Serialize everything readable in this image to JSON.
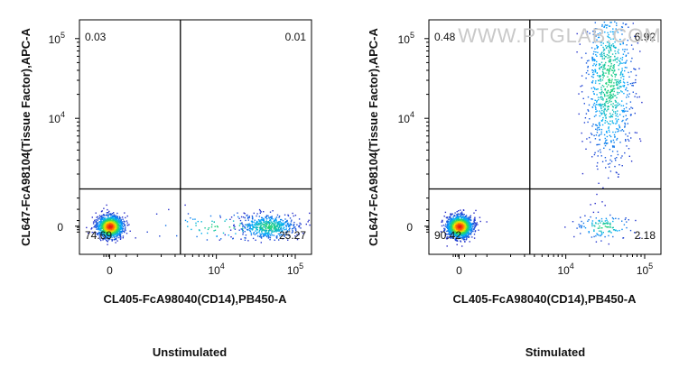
{
  "watermark": "WWW.PTGLAB.COM",
  "chart_data": [
    {
      "type": "scatter",
      "subtype": "flow-cytometry-density-plot",
      "caption": "Unstimulated",
      "xlabel": "CL405-FcA98040(CD14),PB450-A",
      "ylabel": "CL647-FcA98104(Tissue Factor),APC-A",
      "x_ticks": [
        {
          "base": "0",
          "exp": ""
        },
        {
          "base": "10",
          "exp": "4"
        },
        {
          "base": "10",
          "exp": "5"
        }
      ],
      "y_ticks": [
        {
          "base": "0",
          "exp": ""
        },
        {
          "base": "10",
          "exp": "4"
        },
        {
          "base": "10",
          "exp": "5"
        }
      ],
      "scale": "biexponential",
      "gate_x": 3500,
      "gate_y": 1300,
      "quadrants": {
        "top_left": "0.03",
        "top_right": "0.01",
        "bottom_left": "74.69",
        "bottom_right": "25.27"
      },
      "populations": [
        {
          "x": 0,
          "y": 0,
          "n": 1400,
          "spread": "tight"
        },
        {
          "x": 45000,
          "y": 0,
          "n": 520,
          "spread": "medium"
        },
        {
          "x": 12000,
          "y": 0,
          "n": 90,
          "spread": "wide"
        }
      ]
    },
    {
      "type": "scatter",
      "subtype": "flow-cytometry-density-plot",
      "caption": "Stimulated",
      "xlabel": "CL405-FcA98040(CD14),PB450-A",
      "ylabel": "CL647-FcA98104(Tissue Factor),APC-A",
      "x_ticks": [
        {
          "base": "0",
          "exp": ""
        },
        {
          "base": "10",
          "exp": "4"
        },
        {
          "base": "10",
          "exp": "5"
        }
      ],
      "y_ticks": [
        {
          "base": "0",
          "exp": ""
        },
        {
          "base": "10",
          "exp": "4"
        },
        {
          "base": "10",
          "exp": "5"
        }
      ],
      "scale": "biexponential",
      "gate_x": 3500,
      "gate_y": 1300,
      "quadrants": {
        "top_left": "0.48",
        "top_right": "6.92",
        "bottom_left": "90.42",
        "bottom_right": "2.18"
      },
      "populations": [
        {
          "x": 0,
          "y": 0,
          "n": 1500,
          "spread": "tight"
        },
        {
          "x": 35000,
          "y": 30000,
          "n": 900,
          "spread": "vertical-streak"
        },
        {
          "x": 30000,
          "y": 0,
          "n": 120,
          "spread": "medium"
        }
      ]
    }
  ]
}
